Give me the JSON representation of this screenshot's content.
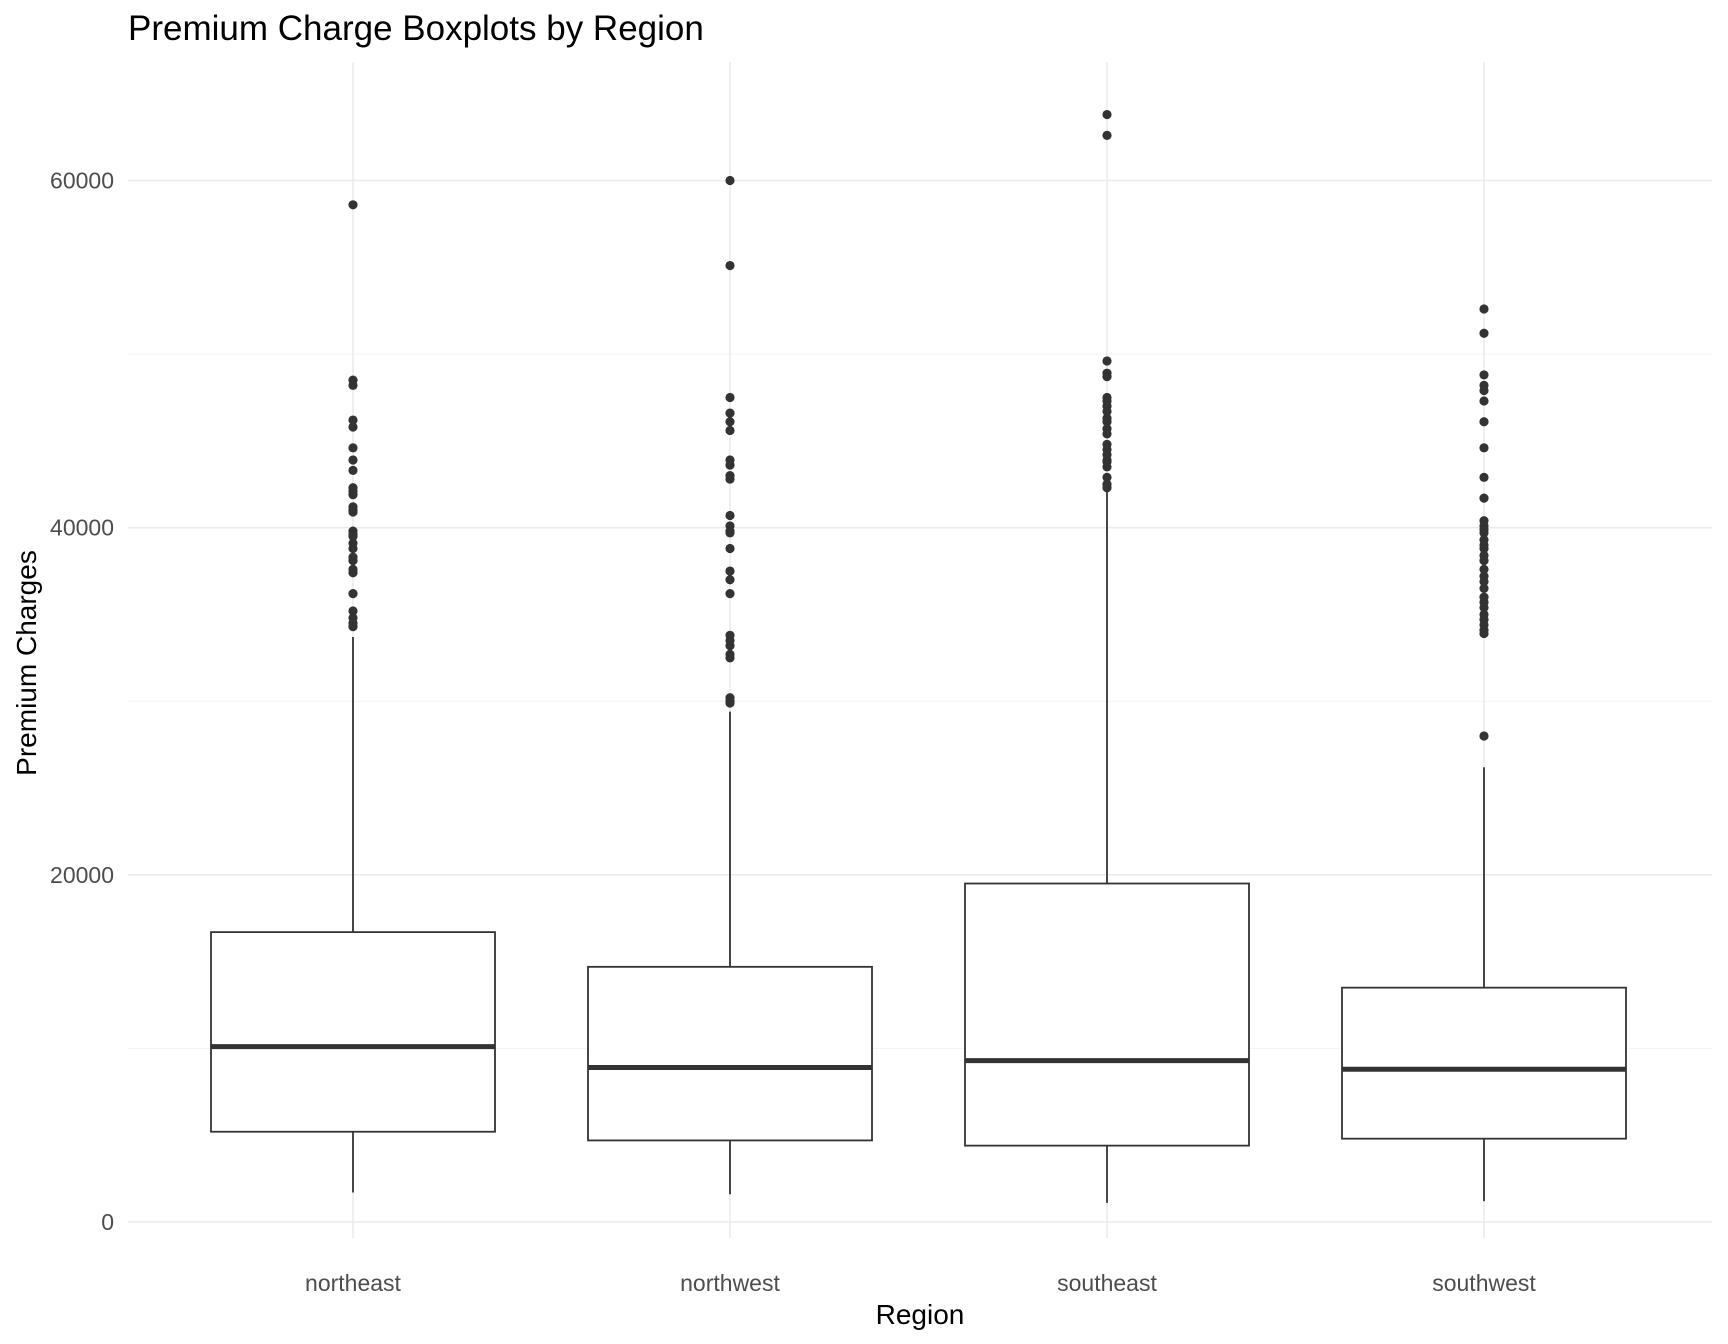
{
  "chart_data": {
    "type": "boxplot",
    "title": "Premium Charge Boxplots by Region",
    "xlabel": "Region",
    "ylabel": "Premium Charges",
    "categories": [
      "northeast",
      "northwest",
      "southeast",
      "southwest"
    ],
    "ylim": [
      -1500,
      66500
    ],
    "yticks": [
      0,
      20000,
      40000,
      60000
    ],
    "ytick_labels": [
      "0",
      "20000",
      "40000",
      "60000"
    ],
    "grid": true,
    "colors": {
      "box_line": "#333333",
      "outlier": "#333333",
      "grid": "#ebebeb",
      "tick_text": "#4d4d4d"
    },
    "boxes": [
      {
        "category": "northeast",
        "whisker_low": 1700,
        "q1": 5200,
        "median": 10100,
        "q3": 16700,
        "whisker_high": 33700,
        "outliers": [
          58600,
          48500,
          48200,
          46200,
          45800,
          44600,
          43900,
          43300,
          42300,
          42100,
          41900,
          41200,
          41000,
          40900,
          39800,
          39600,
          39500,
          39100,
          38800,
          38300,
          38100,
          37600,
          37400,
          36200,
          35200,
          34800,
          34500,
          34300
        ]
      },
      {
        "category": "northwest",
        "whisker_low": 1600,
        "q1": 4700,
        "median": 8900,
        "q3": 14700,
        "whisker_high": 29400,
        "outliers": [
          60000,
          55100,
          47500,
          46600,
          46100,
          45600,
          43900,
          43600,
          43000,
          42800,
          40700,
          40100,
          39800,
          39700,
          38800,
          37500,
          37000,
          36200,
          33800,
          33500,
          33200,
          32700,
          32500,
          30200,
          30000,
          29900
        ]
      },
      {
        "category": "southeast",
        "whisker_low": 1100,
        "q1": 4400,
        "median": 9300,
        "q3": 19500,
        "whisker_high": 42200,
        "outliers": [
          63800,
          62600,
          49600,
          48900,
          48700,
          47500,
          47300,
          47000,
          46700,
          46300,
          46100,
          45700,
          45400,
          44800,
          44500,
          44200,
          43900,
          43800,
          43500,
          42900,
          42500,
          42300
        ]
      },
      {
        "category": "southwest",
        "whisker_low": 1200,
        "q1": 4800,
        "median": 8800,
        "q3": 13500,
        "whisker_high": 26200,
        "outliers": [
          52600,
          51200,
          48800,
          48200,
          47900,
          47300,
          46100,
          44600,
          42900,
          41700,
          40400,
          40100,
          39900,
          39700,
          39300,
          39000,
          38800,
          38400,
          38100,
          37600,
          37200,
          36900,
          36500,
          36000,
          35700,
          35400,
          35000,
          34700,
          34400,
          34100,
          33900,
          28000
        ]
      }
    ]
  }
}
